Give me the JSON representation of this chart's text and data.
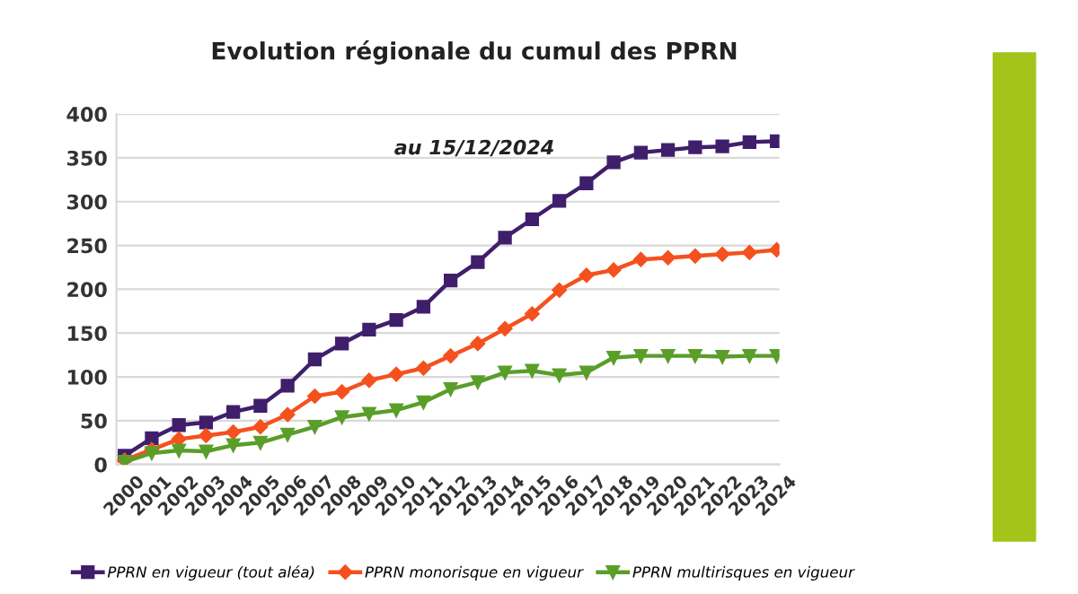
{
  "chart_data": {
    "type": "line",
    "title": "Evolution régionale du cumul des PPRN",
    "subtitle": "au 15/12/2024",
    "categories": [
      "2000",
      "2001",
      "2002",
      "2003",
      "2004",
      "2005",
      "2006",
      "2007",
      "2008",
      "2009",
      "2010",
      "2011",
      "2012",
      "2013",
      "2014",
      "2015",
      "2016",
      "2017",
      "2018",
      "2019",
      "2020",
      "2021",
      "2022",
      "2023",
      "2024"
    ],
    "series": [
      {
        "name": "PPRN en vigueur (tout aléa)",
        "color": "#3f1f6b",
        "marker": "square",
        "values": [
          10,
          30,
          45,
          48,
          60,
          67,
          90,
          120,
          138,
          154,
          165,
          180,
          210,
          231,
          259,
          280,
          301,
          321,
          345,
          356,
          359,
          362,
          363,
          368,
          369
        ]
      },
      {
        "name": "PPRN monorisque en vigueur",
        "color": "#f4511e",
        "marker": "diamond",
        "values": [
          5,
          17,
          29,
          33,
          37,
          43,
          57,
          78,
          83,
          96,
          103,
          110,
          124,
          138,
          155,
          172,
          199,
          216,
          222,
          234,
          236,
          238,
          240,
          242,
          245
        ]
      },
      {
        "name": "PPRN multirisques en vigueur",
        "color": "#5a9e2a",
        "marker": "triangle",
        "values": [
          3,
          13,
          16,
          15,
          22,
          25,
          34,
          43,
          54,
          58,
          62,
          71,
          86,
          94,
          105,
          107,
          102,
          105,
          122,
          124,
          124,
          124,
          123,
          124,
          124
        ]
      }
    ],
    "ylim": [
      0,
      400
    ],
    "yticks": [
      0,
      50,
      100,
      150,
      200,
      250,
      300,
      350,
      400
    ],
    "grid": "y",
    "legend": "bottom"
  }
}
